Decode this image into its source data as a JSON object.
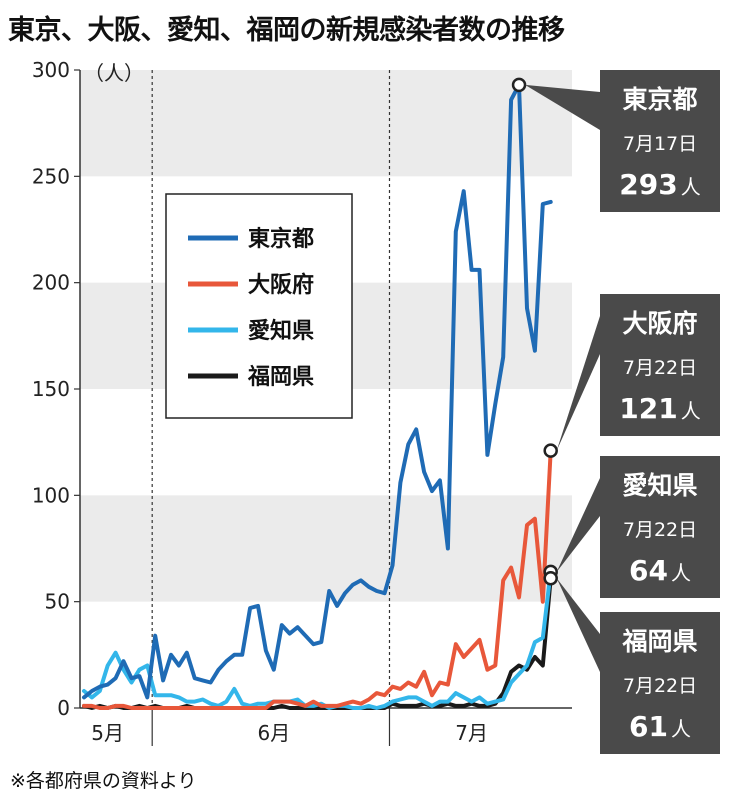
{
  "title": "東京、大阪、愛知、福岡の新規感染者数の推移",
  "note": "※各都府県の資料より",
  "colors": {
    "tokyo": "#1f6bb5",
    "osaka": "#e8573a",
    "aichi": "#33b6ea",
    "fukuoka": "#1a1a1a",
    "band": "#ebebeb",
    "callout": "#4a4a4a"
  },
  "chart_data": {
    "type": "line",
    "ylabel": "（人）",
    "ylim": [
      0,
      300
    ],
    "yticks": [
      0,
      50,
      100,
      150,
      200,
      250,
      300
    ],
    "month_labels": [
      "5月",
      "6月",
      "7月"
    ],
    "x_start": "5月23日",
    "x_note": "daily index 0 = May 23; June 1 = 9, July 1 = 39",
    "series": [
      {
        "key": "tokyo",
        "name": "東京都",
        "values": [
          5,
          8,
          10,
          11,
          14,
          22,
          14,
          15,
          5,
          34,
          13,
          25,
          20,
          26,
          14,
          13,
          12,
          18,
          22,
          25,
          25,
          47,
          48,
          27,
          18,
          39,
          35,
          38,
          34,
          30,
          31,
          55,
          48,
          54,
          58,
          60,
          57,
          55,
          54,
          67,
          106,
          124,
          131,
          111,
          102,
          107,
          75,
          224,
          243,
          206,
          206,
          119,
          143,
          165,
          286,
          293,
          188,
          168,
          237,
          238
        ]
      },
      {
        "key": "osaka",
        "name": "大阪府",
        "values": [
          1,
          1,
          0,
          0,
          1,
          1,
          0,
          0,
          0,
          0,
          0,
          0,
          0,
          0,
          0,
          0,
          0,
          0,
          0,
          0,
          0,
          0,
          0,
          0,
          3,
          3,
          3,
          2,
          1,
          3,
          1,
          1,
          1,
          2,
          3,
          2,
          4,
          7,
          6,
          10,
          9,
          12,
          10,
          17,
          6,
          12,
          11,
          30,
          24,
          28,
          32,
          18,
          20,
          60,
          66,
          52,
          86,
          89,
          50,
          121
        ]
      },
      {
        "key": "aichi",
        "name": "愛知県",
        "values": [
          8,
          5,
          8,
          20,
          26,
          18,
          12,
          18,
          20,
          6,
          6,
          6,
          5,
          3,
          3,
          4,
          2,
          1,
          3,
          9,
          2,
          1,
          2,
          2,
          3,
          3,
          3,
          4,
          1,
          1,
          2,
          0,
          1,
          1,
          0,
          0,
          1,
          0,
          1,
          3,
          4,
          5,
          5,
          3,
          1,
          3,
          3,
          7,
          5,
          3,
          5,
          2,
          3,
          4,
          12,
          16,
          20,
          31,
          33,
          64
        ]
      },
      {
        "key": "fukuoka",
        "name": "福岡県",
        "values": [
          1,
          0,
          1,
          0,
          1,
          0,
          0,
          1,
          0,
          1,
          0,
          0,
          0,
          1,
          0,
          0,
          0,
          0,
          0,
          0,
          0,
          0,
          0,
          0,
          0,
          1,
          0,
          0,
          0,
          0,
          0,
          0,
          0,
          0,
          0,
          0,
          0,
          0,
          0,
          2,
          1,
          1,
          1,
          2,
          1,
          1,
          2,
          1,
          1,
          2,
          1,
          1,
          2,
          7,
          17,
          20,
          18,
          24,
          20,
          61
        ]
      }
    ],
    "callouts": [
      {
        "key": "tokyo",
        "name": "東京都",
        "date": "7月17日",
        "value": "293",
        "unit": "人"
      },
      {
        "key": "osaka",
        "name": "大阪府",
        "date": "7月22日",
        "value": "121",
        "unit": "人"
      },
      {
        "key": "aichi",
        "name": "愛知県",
        "date": "7月22日",
        "value": "64",
        "unit": "人"
      },
      {
        "key": "fukuoka",
        "name": "福岡県",
        "date": "7月22日",
        "value": "61",
        "unit": "人"
      }
    ],
    "legend": [
      "東京都",
      "大阪府",
      "愛知県",
      "福岡県"
    ],
    "grid": "alternating horizontal bands"
  }
}
